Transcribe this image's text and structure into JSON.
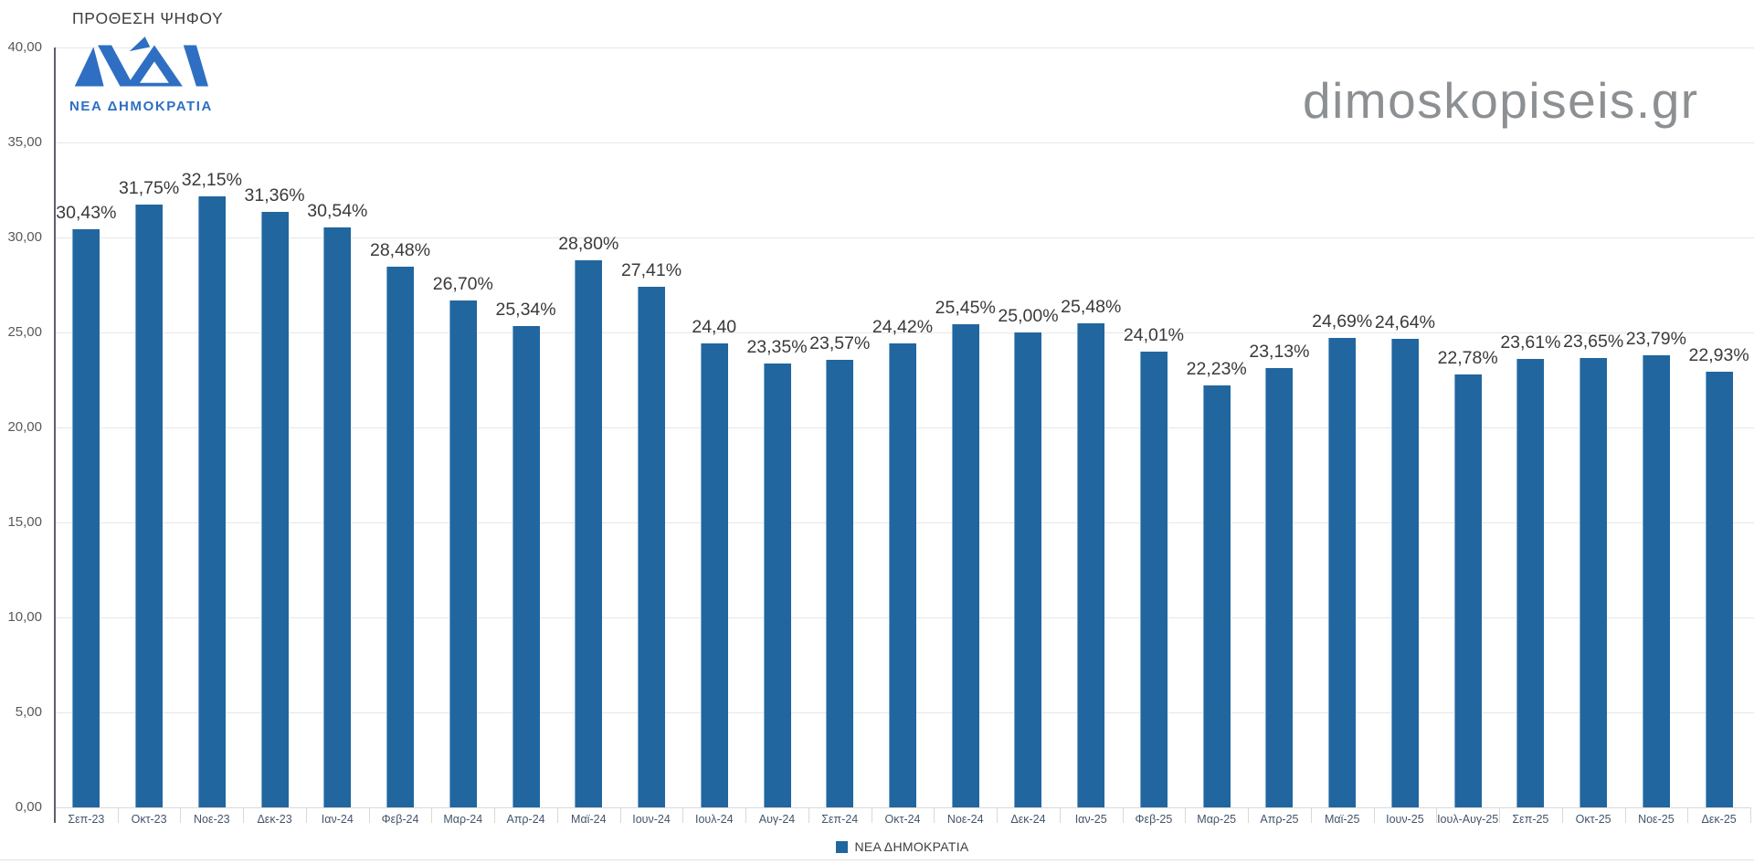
{
  "header": {
    "title": "ΠΡΟΘΕΣΗ ΨΗΦΟΥ",
    "watermark": "dimoskopiseis.gr"
  },
  "logo": {
    "caption": "ΝΕΑ ΔΗΜΟΚΡΑΤΙΑ",
    "color": "#2e6fc3"
  },
  "legend": {
    "label": "ΝΕΑ ΔΗΜΟΚΡΑΤΙΑ"
  },
  "colors": {
    "bar": "#21669f",
    "grid": "#e7e7e7",
    "axis": "#5b6069",
    "category_label": "#44546a",
    "value_label": "#3a3a3a",
    "watermark": "#8d9093"
  },
  "chart_data": {
    "type": "bar",
    "title": "ΠΡΟΘΕΣΗ ΨΗΦΟΥ",
    "series_name": "ΝΕΑ ΔΗΜΟΚΡΑΤΙΑ",
    "categories": [
      "Σεπ-23",
      "Οκτ-23",
      "Νοε-23",
      "Δεκ-23",
      "Ιαν-24",
      "Φεβ-24",
      "Μαρ-24",
      "Απρ-24",
      "Μαϊ-24",
      "Ιουν-24",
      "Ιουλ-24",
      "Αυγ-24",
      "Σεπ-24",
      "Οκτ-24",
      "Νοε-24",
      "Δεκ-24",
      "Ιαν-25",
      "Φεβ-25",
      "Μαρ-25",
      "Απρ-25",
      "Μαϊ-25",
      "Ιουν-25",
      "Ιουλ-Αυγ-25",
      "Σεπ-25",
      "Οκτ-25",
      "Νοε-25",
      "Δεκ-25"
    ],
    "values": [
      30.43,
      31.75,
      32.15,
      31.36,
      30.54,
      28.48,
      26.7,
      25.34,
      28.8,
      27.41,
      24.4,
      23.35,
      23.57,
      24.42,
      25.45,
      25.0,
      25.48,
      24.01,
      22.23,
      23.13,
      24.69,
      24.64,
      22.78,
      23.61,
      23.65,
      23.79,
      22.93
    ],
    "value_labels": [
      "30,43%",
      "31,75%",
      "32,15%",
      "31,36%",
      "30,54%",
      "28,48%",
      "26,70%",
      "25,34%",
      "28,80%",
      "27,41%",
      "24,40",
      "23,35%",
      "23,57%",
      "24,42%",
      "25,45%",
      "25,00%",
      "25,48%",
      "24,01%",
      "22,23%",
      "23,13%",
      "24,69%",
      "24,64%",
      "22,78%",
      "23,61%",
      "23,65%",
      "23,79%",
      "22,93%"
    ],
    "xlabel": "",
    "ylabel": "",
    "ylim": [
      0,
      40
    ],
    "ytick_step": 5,
    "ytick_labels": [
      "0,00",
      "5,00",
      "10,00",
      "15,00",
      "20,00",
      "25,00",
      "30,00",
      "35,00",
      "40,00"
    ],
    "grid": true,
    "legend_position": "bottom"
  }
}
